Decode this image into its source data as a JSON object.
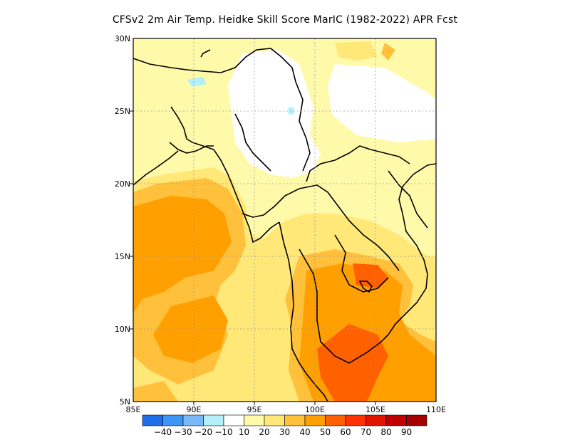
{
  "title": "CFSv2  2m Air Temp. Heidke Skill Score MarIC (1982-2022) APR Fcst",
  "map": {
    "projection": "lat-lon",
    "lon_range": [
      85,
      110
    ],
    "lat_range": [
      5,
      30
    ],
    "grid": "dotted",
    "variable": "Heidke skill score",
    "x_ticks": [
      "85E",
      "90E",
      "95E",
      "100E",
      "105E",
      "110E"
    ],
    "y_ticks": [
      "30N",
      "25N",
      "20N",
      "15N",
      "10N",
      "5N"
    ],
    "field_regions": [
      {
        "name": "Bay of Bengal / west coast Myanmar",
        "level": 40
      },
      {
        "name": "Northeast Myanmar / Yunnan",
        "level": 0
      },
      {
        "name": "Northern Indochina",
        "level": 20
      },
      {
        "name": "Central Thailand / Cambodia",
        "level": 50
      },
      {
        "name": "Gulf of Thailand / South China Sea south",
        "level": 50
      },
      {
        "name": "Eastern Tibet / north edge",
        "level": 20
      },
      {
        "name": "Small negative patch near 89E 28N",
        "level": -10
      }
    ]
  },
  "colorbar": {
    "colors": [
      "#1e6eeb",
      "#3c96f5",
      "#78b9fa",
      "#b4f0fa",
      "#ffffff",
      "#fffaaa",
      "#ffe878",
      "#ffc03c",
      "#ffa000",
      "#ff6000",
      "#ff3200",
      "#e11400",
      "#c00000",
      "#a50000"
    ],
    "labels": [
      "-40",
      "-30",
      "-20",
      "-10",
      "10",
      "20",
      "30",
      "40",
      "50",
      "60",
      "70",
      "80",
      "90"
    ]
  }
}
